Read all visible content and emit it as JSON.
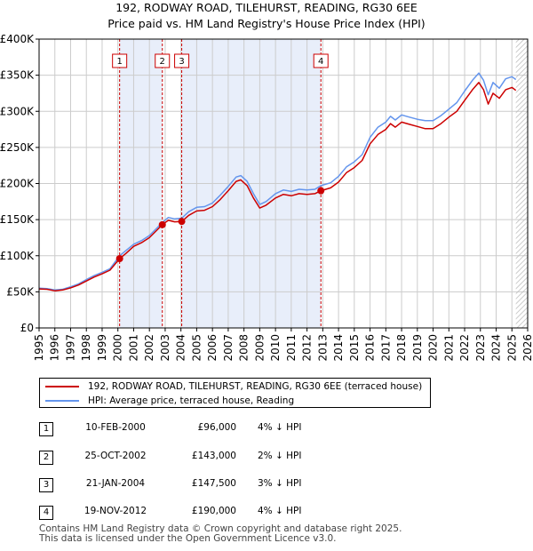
{
  "title_line1": "192, RODWAY ROAD, TILEHURST, READING, RG30 6EE",
  "title_line2": "Price paid vs. HM Land Registry's House Price Index (HPI)",
  "colors": {
    "property": "#cc0000",
    "hpi": "#6495ed",
    "sale_band": "#e8eefa",
    "grid": "#cccccc",
    "marker_line": "#cc0000"
  },
  "chart_data": {
    "type": "line",
    "x_range": [
      1995,
      2026
    ],
    "ylim": [
      0,
      400000
    ],
    "y_ticks": [
      {
        "value": 0,
        "label": "£0"
      },
      {
        "value": 50000,
        "label": "£50K"
      },
      {
        "value": 100000,
        "label": "£100K"
      },
      {
        "value": 150000,
        "label": "£150K"
      },
      {
        "value": 200000,
        "label": "£200K"
      },
      {
        "value": 250000,
        "label": "£250K"
      },
      {
        "value": 300000,
        "label": "£300K"
      },
      {
        "value": 350000,
        "label": "£350K"
      },
      {
        "value": 400000,
        "label": "£400K"
      }
    ],
    "x_ticks": [
      "1995",
      "1996",
      "1997",
      "1998",
      "1999",
      "2000",
      "2001",
      "2002",
      "2003",
      "2004",
      "2005",
      "2006",
      "2007",
      "2008",
      "2009",
      "2010",
      "2011",
      "2012",
      "2013",
      "2014",
      "2015",
      "2016",
      "2017",
      "2018",
      "2019",
      "2020",
      "2021",
      "2022",
      "2023",
      "2024",
      "2025",
      "2026"
    ],
    "grid": true,
    "shaded_ranges": [
      [
        2000.11,
        2002.82
      ],
      [
        2004.05,
        2012.88
      ]
    ],
    "hatch_from": 2025.25,
    "series": [
      {
        "name": "192, RODWAY ROAD, TILEHURST, READING, RG30 6EE (terraced house)",
        "color": "#cc0000",
        "points": [
          [
            1995.0,
            54000
          ],
          [
            1995.5,
            53500
          ],
          [
            1996.0,
            51500
          ],
          [
            1996.5,
            52500
          ],
          [
            1997.0,
            55500
          ],
          [
            1997.5,
            59500
          ],
          [
            1998.0,
            65000
          ],
          [
            1998.5,
            70500
          ],
          [
            1999.0,
            75000
          ],
          [
            1999.5,
            80000
          ],
          [
            2000.11,
            96000
          ],
          [
            2000.5,
            103000
          ],
          [
            2001.0,
            113000
          ],
          [
            2001.5,
            118000
          ],
          [
            2002.0,
            125000
          ],
          [
            2002.5,
            136000
          ],
          [
            2002.82,
            143000
          ],
          [
            2003.2,
            149000
          ],
          [
            2003.6,
            147000
          ],
          [
            2004.05,
            147500
          ],
          [
            2004.5,
            156000
          ],
          [
            2005.0,
            162000
          ],
          [
            2005.5,
            163000
          ],
          [
            2006.0,
            168000
          ],
          [
            2006.5,
            178000
          ],
          [
            2007.0,
            190000
          ],
          [
            2007.5,
            203000
          ],
          [
            2007.8,
            205000
          ],
          [
            2008.2,
            197000
          ],
          [
            2008.6,
            180000
          ],
          [
            2009.0,
            166000
          ],
          [
            2009.4,
            170000
          ],
          [
            2010.0,
            180000
          ],
          [
            2010.5,
            185000
          ],
          [
            2011.0,
            183000
          ],
          [
            2011.5,
            186000
          ],
          [
            2012.0,
            185000
          ],
          [
            2012.5,
            186000
          ],
          [
            2012.88,
            190000
          ],
          [
            2013.5,
            194000
          ],
          [
            2014.0,
            202000
          ],
          [
            2014.5,
            215000
          ],
          [
            2015.0,
            222000
          ],
          [
            2015.5,
            232000
          ],
          [
            2016.0,
            255000
          ],
          [
            2016.5,
            268000
          ],
          [
            2017.0,
            275000
          ],
          [
            2017.3,
            283000
          ],
          [
            2017.6,
            278000
          ],
          [
            2018.0,
            285000
          ],
          [
            2018.5,
            282000
          ],
          [
            2019.0,
            279000
          ],
          [
            2019.5,
            276000
          ],
          [
            2020.0,
            276000
          ],
          [
            2020.5,
            283000
          ],
          [
            2021.0,
            292000
          ],
          [
            2021.5,
            300000
          ],
          [
            2022.0,
            315000
          ],
          [
            2022.5,
            330000
          ],
          [
            2022.9,
            340000
          ],
          [
            2023.2,
            330000
          ],
          [
            2023.5,
            310000
          ],
          [
            2023.8,
            325000
          ],
          [
            2024.2,
            318000
          ],
          [
            2024.6,
            330000
          ],
          [
            2025.0,
            333000
          ],
          [
            2025.25,
            329000
          ]
        ]
      },
      {
        "name": "HPI: Average price, terraced house, Reading",
        "color": "#6495ed",
        "points": [
          [
            1995.0,
            55000
          ],
          [
            1995.5,
            54500
          ],
          [
            1996.0,
            52500
          ],
          [
            1996.5,
            53500
          ],
          [
            1997.0,
            57000
          ],
          [
            1997.5,
            61000
          ],
          [
            1998.0,
            67000
          ],
          [
            1998.5,
            72500
          ],
          [
            1999.0,
            77000
          ],
          [
            1999.5,
            82000
          ],
          [
            2000.11,
            100000
          ],
          [
            2000.5,
            107000
          ],
          [
            2001.0,
            116000
          ],
          [
            2001.5,
            121000
          ],
          [
            2002.0,
            128000
          ],
          [
            2002.5,
            139000
          ],
          [
            2002.82,
            146000
          ],
          [
            2003.2,
            153000
          ],
          [
            2003.6,
            151000
          ],
          [
            2004.05,
            152000
          ],
          [
            2004.5,
            161000
          ],
          [
            2005.0,
            167000
          ],
          [
            2005.5,
            168000
          ],
          [
            2006.0,
            173000
          ],
          [
            2006.5,
            184000
          ],
          [
            2007.0,
            196000
          ],
          [
            2007.5,
            209000
          ],
          [
            2007.8,
            211000
          ],
          [
            2008.2,
            203000
          ],
          [
            2008.6,
            186000
          ],
          [
            2009.0,
            171000
          ],
          [
            2009.4,
            175000
          ],
          [
            2010.0,
            186000
          ],
          [
            2010.5,
            191000
          ],
          [
            2011.0,
            189000
          ],
          [
            2011.5,
            192000
          ],
          [
            2012.0,
            191000
          ],
          [
            2012.5,
            192000
          ],
          [
            2012.88,
            197000
          ],
          [
            2013.5,
            201000
          ],
          [
            2014.0,
            210000
          ],
          [
            2014.5,
            223000
          ],
          [
            2015.0,
            230000
          ],
          [
            2015.5,
            240000
          ],
          [
            2016.0,
            264000
          ],
          [
            2016.5,
            278000
          ],
          [
            2017.0,
            285000
          ],
          [
            2017.3,
            293000
          ],
          [
            2017.6,
            288000
          ],
          [
            2018.0,
            295000
          ],
          [
            2018.5,
            292000
          ],
          [
            2019.0,
            289000
          ],
          [
            2019.5,
            287000
          ],
          [
            2020.0,
            287000
          ],
          [
            2020.5,
            294000
          ],
          [
            2021.0,
            303000
          ],
          [
            2021.5,
            312000
          ],
          [
            2022.0,
            328000
          ],
          [
            2022.5,
            343000
          ],
          [
            2022.9,
            353000
          ],
          [
            2023.2,
            343000
          ],
          [
            2023.5,
            323000
          ],
          [
            2023.8,
            340000
          ],
          [
            2024.2,
            332000
          ],
          [
            2024.6,
            345000
          ],
          [
            2025.0,
            348000
          ],
          [
            2025.25,
            344000
          ]
        ]
      }
    ],
    "sale_markers": [
      {
        "label": "1",
        "x": 2000.11,
        "value": 96000
      },
      {
        "label": "2",
        "x": 2002.82,
        "value": 143000
      },
      {
        "label": "3",
        "x": 2004.05,
        "value": 147500
      },
      {
        "label": "4",
        "x": 2012.88,
        "value": 190000
      }
    ]
  },
  "legend": {
    "property_label": "192, RODWAY ROAD, TILEHURST, READING, RG30 6EE (terraced house)",
    "hpi_label": "HPI: Average price, terraced house, Reading"
  },
  "sales": [
    {
      "num": "1",
      "date": "10-FEB-2000",
      "price": "£96,000",
      "hpi": "4% ↓ HPI"
    },
    {
      "num": "2",
      "date": "25-OCT-2002",
      "price": "£143,000",
      "hpi": "2% ↓ HPI"
    },
    {
      "num": "3",
      "date": "21-JAN-2004",
      "price": "£147,500",
      "hpi": "3% ↓ HPI"
    },
    {
      "num": "4",
      "date": "19-NOV-2012",
      "price": "£190,000",
      "hpi": "4% ↓ HPI"
    }
  ],
  "footer_line1": "Contains HM Land Registry data © Crown copyright and database right 2025.",
  "footer_line2": "This data is licensed under the Open Government Licence v3.0."
}
